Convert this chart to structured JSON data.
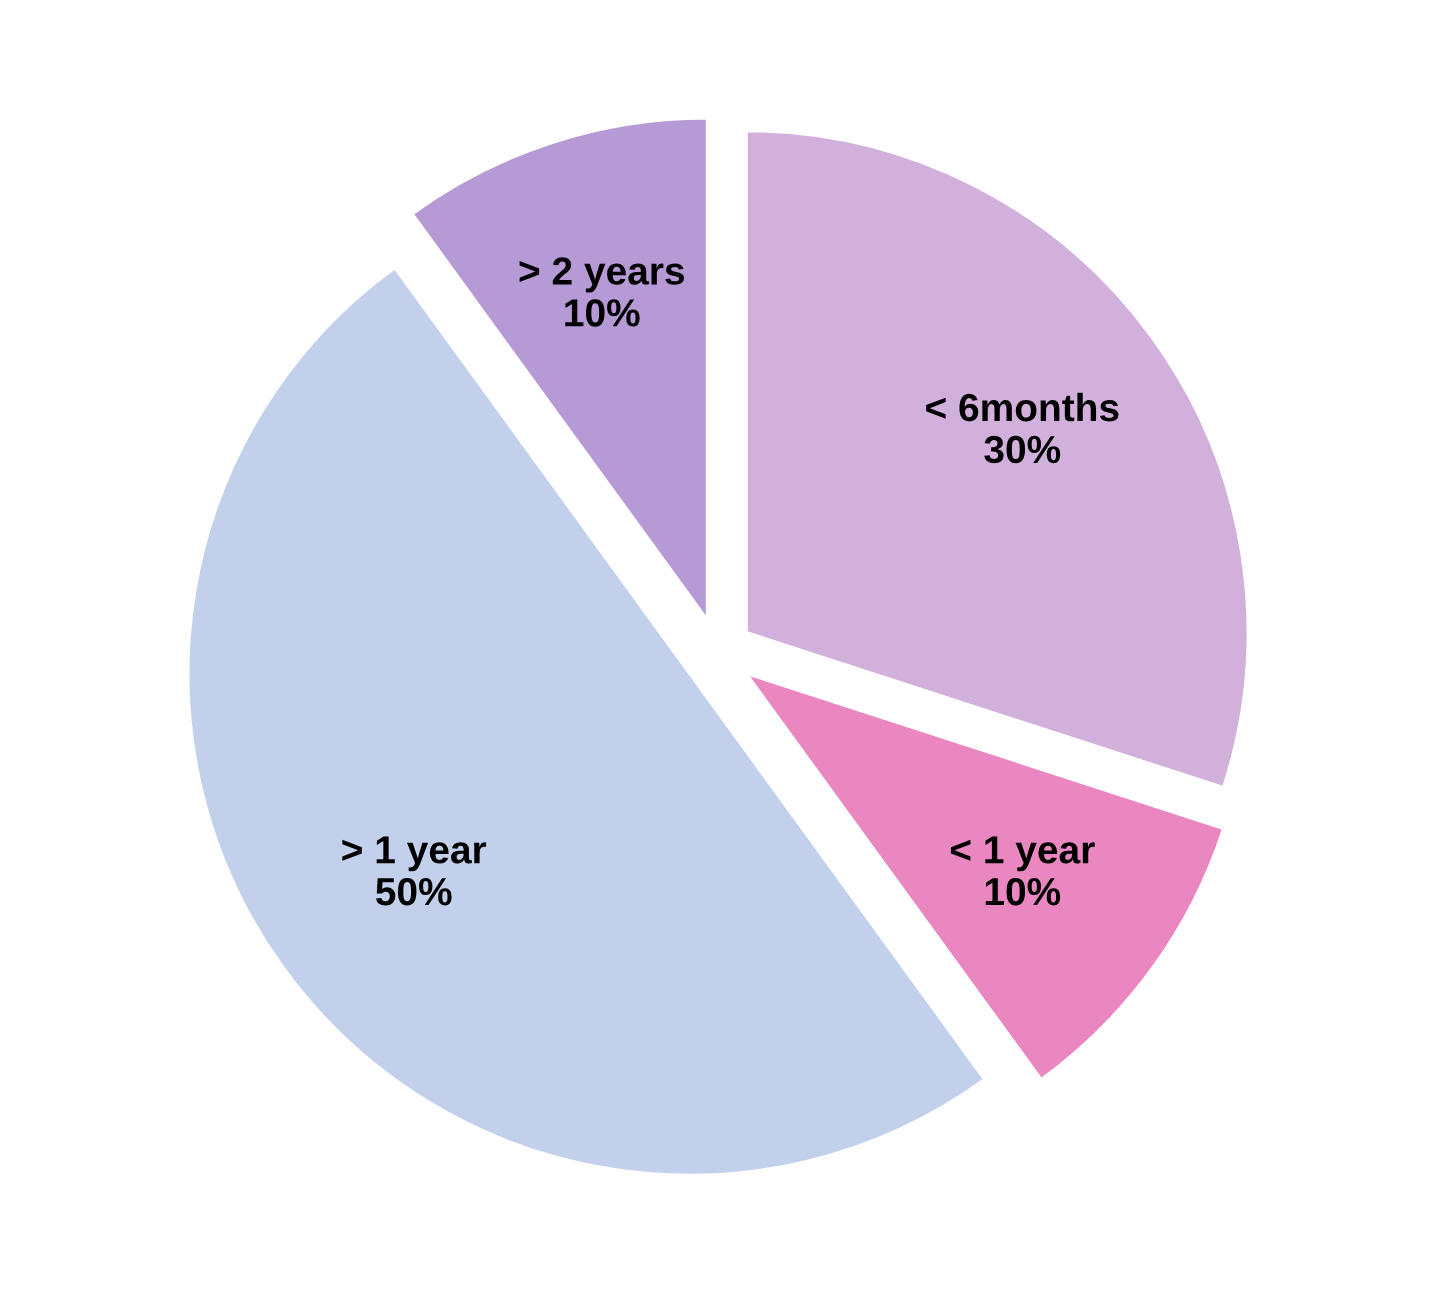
{
  "chart_data": {
    "type": "pie",
    "categories": [
      "< 6months",
      "< 1 year",
      "> 1 year",
      "> 2 years"
    ],
    "values": [
      30,
      10,
      50,
      10
    ],
    "value_labels": [
      "30%",
      "10%",
      "50%",
      "10%"
    ],
    "colors": [
      "#d2b0dc",
      "#ea86c0",
      "#c3d0ec",
      "#b59ad6"
    ],
    "legend": false
  }
}
